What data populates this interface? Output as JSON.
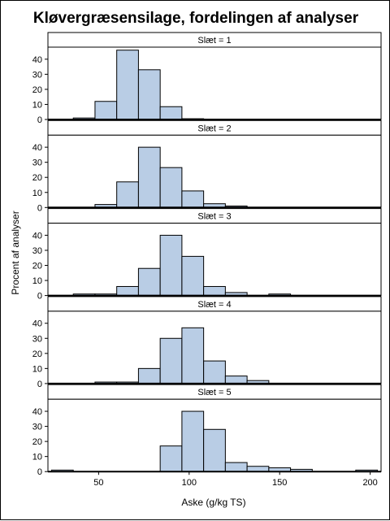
{
  "chart_data": {
    "type": "bar",
    "title": "Kløvergræsensilage, fordelingen af analyser",
    "xlabel": "Aske (g/kg TS)",
    "ylabel": "Procent af analyser",
    "xlim": [
      22,
      206
    ],
    "xticks": [
      50,
      100,
      150,
      200
    ],
    "ylim": [
      0,
      48
    ],
    "yticks": [
      0,
      10,
      20,
      30,
      40
    ],
    "bin_width": 12,
    "bin_edges_start": 24,
    "colors": {
      "bar_fill": "#b9cde5",
      "bar_stroke": "#000000"
    },
    "panels": [
      {
        "label": "Slæt = 1",
        "bins": [
          {
            "center": 42,
            "value": 1
          },
          {
            "center": 54,
            "value": 12
          },
          {
            "center": 66,
            "value": 46
          },
          {
            "center": 78,
            "value": 33
          },
          {
            "center": 90,
            "value": 8.5
          },
          {
            "center": 102,
            "value": 0.5
          }
        ]
      },
      {
        "label": "Slæt = 2",
        "bins": [
          {
            "center": 54,
            "value": 2
          },
          {
            "center": 66,
            "value": 17
          },
          {
            "center": 78,
            "value": 40
          },
          {
            "center": 90,
            "value": 26.5
          },
          {
            "center": 102,
            "value": 11
          },
          {
            "center": 114,
            "value": 2.5
          },
          {
            "center": 126,
            "value": 1
          }
        ]
      },
      {
        "label": "Slæt = 3",
        "bins": [
          {
            "center": 42,
            "value": 1
          },
          {
            "center": 54,
            "value": 1
          },
          {
            "center": 66,
            "value": 6
          },
          {
            "center": 78,
            "value": 18
          },
          {
            "center": 90,
            "value": 40
          },
          {
            "center": 102,
            "value": 26
          },
          {
            "center": 114,
            "value": 6
          },
          {
            "center": 126,
            "value": 2
          },
          {
            "center": 150,
            "value": 1
          }
        ]
      },
      {
        "label": "Slæt = 4",
        "bins": [
          {
            "center": 54,
            "value": 1
          },
          {
            "center": 66,
            "value": 1
          },
          {
            "center": 78,
            "value": 10
          },
          {
            "center": 90,
            "value": 30
          },
          {
            "center": 102,
            "value": 37
          },
          {
            "center": 114,
            "value": 15
          },
          {
            "center": 126,
            "value": 5
          },
          {
            "center": 138,
            "value": 2
          }
        ]
      },
      {
        "label": "Slæt = 5",
        "bins": [
          {
            "center": 30,
            "value": 1
          },
          {
            "center": 90,
            "value": 17
          },
          {
            "center": 102,
            "value": 40
          },
          {
            "center": 114,
            "value": 28
          },
          {
            "center": 126,
            "value": 6
          },
          {
            "center": 138,
            "value": 3.5
          },
          {
            "center": 150,
            "value": 2.5
          },
          {
            "center": 162,
            "value": 1.5
          },
          {
            "center": 198,
            "value": 1
          }
        ]
      }
    ]
  }
}
